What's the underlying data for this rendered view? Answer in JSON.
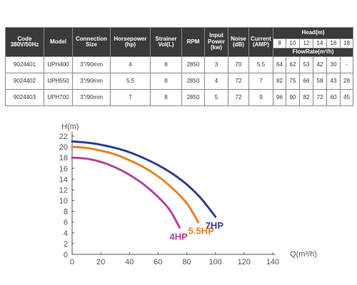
{
  "table": {
    "headers": {
      "code": "Code 380V/50Hz",
      "model": "Model",
      "connection": "Connection Size",
      "horsepower": "Horsepower (hp)",
      "strainer": "Strainer Vol(L)",
      "rpm": "RPM",
      "input_power": "Input Power (kw)",
      "noise": "Noise (dB)",
      "current": "Current (AMP)",
      "head": "Head(m)",
      "flowrate": "FlowRate(m³/h)",
      "head_values": [
        "8",
        "10",
        "12",
        "14",
        "16",
        "18"
      ]
    },
    "rows": [
      {
        "code": "9024401",
        "model": "UPH400",
        "connection": "3\"/90mm",
        "horsepower": "4",
        "strainer": "8",
        "rpm": "2850",
        "input_power": "3",
        "noise": "70",
        "current": "5.5",
        "flows": [
          "64",
          "62",
          "53",
          "42",
          "30",
          "-"
        ]
      },
      {
        "code": "9024402",
        "model": "UPH550",
        "connection": "3\"/90mm",
        "horsepower": "5.5",
        "strainer": "8",
        "rpm": "2850",
        "input_power": "4",
        "noise": "72",
        "current": "7",
        "flows": [
          "82",
          "75",
          "66",
          "58",
          "43",
          "28"
        ]
      },
      {
        "code": "9024403",
        "model": "UPH700",
        "connection": "3\"/90mm",
        "horsepower": "7",
        "strainer": "8",
        "rpm": "2850",
        "input_power": "5",
        "noise": "72",
        "current": "9",
        "flows": [
          "96",
          "90",
          "82",
          "72",
          "60",
          "45"
        ]
      }
    ]
  },
  "chart_data": {
    "type": "line",
    "xlabel": "Q(m³/h)",
    "ylabel": "H(m)",
    "xlim": [
      0,
      140
    ],
    "ylim": [
      0,
      22
    ],
    "x_ticks": [
      "0",
      "20",
      "40",
      "60",
      "80",
      "100",
      "120",
      "140"
    ],
    "y_ticks": [
      "0",
      "2",
      "4",
      "6",
      "8",
      "10",
      "12",
      "14",
      "16",
      "18",
      "20",
      "22"
    ],
    "grid": false,
    "series": [
      {
        "name": "4HP",
        "color": "#b5449a",
        "points": [
          [
            0,
            18
          ],
          [
            10,
            17.8
          ],
          [
            20,
            17.2
          ],
          [
            30,
            16.2
          ],
          [
            40,
            14.8
          ],
          [
            50,
            13
          ],
          [
            60,
            10.7
          ],
          [
            68,
            8.3
          ],
          [
            75,
            5
          ]
        ]
      },
      {
        "name": "5.5HP",
        "color": "#e8822a",
        "points": [
          [
            0,
            20
          ],
          [
            10,
            19.8
          ],
          [
            20,
            19.3
          ],
          [
            30,
            18.6
          ],
          [
            40,
            17.5
          ],
          [
            50,
            16.2
          ],
          [
            60,
            14.5
          ],
          [
            70,
            12.3
          ],
          [
            80,
            9.5
          ],
          [
            88,
            6
          ]
        ]
      },
      {
        "name": "7HP",
        "color": "#2f3f8f",
        "points": [
          [
            0,
            21
          ],
          [
            10,
            20.8
          ],
          [
            20,
            20.4
          ],
          [
            30,
            19.8
          ],
          [
            40,
            19
          ],
          [
            50,
            17.9
          ],
          [
            60,
            16.6
          ],
          [
            70,
            15
          ],
          [
            80,
            13
          ],
          [
            90,
            10.4
          ],
          [
            100,
            7
          ]
        ]
      }
    ]
  }
}
